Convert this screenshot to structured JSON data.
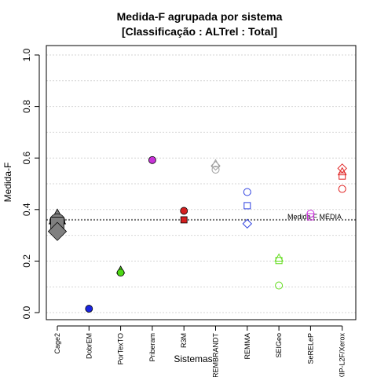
{
  "chart_data": {
    "type": "scatter",
    "title_line1": "Medida-F agrupada por sistema",
    "title_line2": "[Classificação : ALTrel : Total]",
    "xlabel": "Sistemas",
    "ylabel": "Medida-F",
    "ylim": [
      0,
      1
    ],
    "yticks": [
      "0.0",
      "0.2",
      "0.4",
      "0.6",
      "0.8",
      "1.0"
    ],
    "grid": true,
    "categories": [
      "Cage2",
      "DobrEM",
      "PorTexTO",
      "Priberam",
      "R3M",
      "REMBRANDT",
      "REMMA",
      "SEIGeo",
      "SeRELeP",
      "XIP-L2F/Xerox"
    ],
    "reference_line": {
      "label": "Medida-F MÉDIA",
      "value": 0.36
    },
    "points": [
      {
        "category": "Cage2",
        "y": 0.37,
        "shape": "triangle",
        "color": "#808080",
        "filled": true,
        "large": true
      },
      {
        "category": "Cage2",
        "y": 0.355,
        "shape": "circle",
        "color": "#808080",
        "filled": true,
        "large": true
      },
      {
        "category": "Cage2",
        "y": 0.345,
        "shape": "square",
        "color": "#808080",
        "filled": true,
        "large": true
      },
      {
        "category": "Cage2",
        "y": 0.315,
        "shape": "diamond",
        "color": "#808080",
        "filled": true,
        "large": true
      },
      {
        "category": "DobrEM",
        "y": 0.015,
        "shape": "circle",
        "color": "#1a24e0",
        "filled": true
      },
      {
        "category": "PorTexTO",
        "y": 0.165,
        "shape": "triangle",
        "color": "#4dd814",
        "filled": true
      },
      {
        "category": "PorTexTO",
        "y": 0.155,
        "shape": "circle",
        "color": "#4dd814",
        "filled": true
      },
      {
        "category": "Priberam",
        "y": 0.592,
        "shape": "circle",
        "color": "#c832d8",
        "filled": true
      },
      {
        "category": "R3M",
        "y": 0.395,
        "shape": "circle",
        "color": "#d41f1f",
        "filled": true
      },
      {
        "category": "R3M",
        "y": 0.36,
        "shape": "square",
        "color": "#d41f1f",
        "filled": true
      },
      {
        "category": "REMBRANDT",
        "y": 0.578,
        "shape": "triangle",
        "color": "#a0a0a0",
        "filled": false
      },
      {
        "category": "REMBRANDT",
        "y": 0.57,
        "shape": "diamond",
        "color": "#a0a0a0",
        "filled": false
      },
      {
        "category": "REMBRANDT",
        "y": 0.555,
        "shape": "circle",
        "color": "#a0a0a0",
        "filled": false
      },
      {
        "category": "REMMA",
        "y": 0.468,
        "shape": "circle",
        "color": "#2c3fe0",
        "filled": false
      },
      {
        "category": "REMMA",
        "y": 0.415,
        "shape": "square",
        "color": "#2c3fe0",
        "filled": false
      },
      {
        "category": "REMMA",
        "y": 0.345,
        "shape": "diamond",
        "color": "#2c3fe0",
        "filled": false
      },
      {
        "category": "SEIGeo",
        "y": 0.212,
        "shape": "triangle",
        "color": "#66dd22",
        "filled": false
      },
      {
        "category": "SEIGeo",
        "y": 0.202,
        "shape": "square",
        "color": "#66dd22",
        "filled": false
      },
      {
        "category": "SEIGeo",
        "y": 0.105,
        "shape": "circle",
        "color": "#66dd22",
        "filled": false
      },
      {
        "category": "SeRELeP",
        "y": 0.384,
        "shape": "circle",
        "color": "#cc33dd",
        "filled": false
      },
      {
        "category": "SeRELeP",
        "y": 0.372,
        "shape": "square",
        "color": "#cc33dd",
        "filled": false
      },
      {
        "category": "XIP-L2F/Xerox",
        "y": 0.56,
        "shape": "diamond",
        "color": "#e02020",
        "filled": false
      },
      {
        "category": "XIP-L2F/Xerox",
        "y": 0.547,
        "shape": "triangle",
        "color": "#e02020",
        "filled": false
      },
      {
        "category": "XIP-L2F/Xerox",
        "y": 0.53,
        "shape": "square",
        "color": "#e02020",
        "filled": false
      },
      {
        "category": "XIP-L2F/Xerox",
        "y": 0.48,
        "shape": "circle",
        "color": "#e02020",
        "filled": false
      }
    ]
  }
}
